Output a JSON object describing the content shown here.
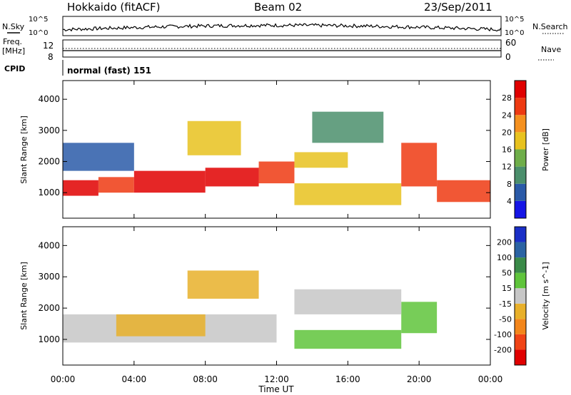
{
  "header": {
    "station": "Hokkaido (fitACF)",
    "beam": "Beam 02",
    "date": "23/Sep/2011"
  },
  "noise_panel": {
    "left_label": "N.Sky",
    "right_label": "N.Search",
    "axis_top": "10^5",
    "axis_bottom": "10^0"
  },
  "freq_panel": {
    "left_label_1": "Freq.",
    "left_label_2": "[MHz]",
    "left_top": "12",
    "left_bottom": "8",
    "right_label": "Nave",
    "right_top": "60",
    "right_bottom": "0"
  },
  "cpid_panel": {
    "label": "CPID",
    "text": "normal (fast) 151"
  },
  "x_axis": {
    "label": "Time UT",
    "ticks": [
      "00:00",
      "04:00",
      "08:00",
      "12:00",
      "16:00",
      "20:00",
      "00:00"
    ]
  },
  "power_panel": {
    "ylabel": "Slant Range [km]",
    "yticks": [
      "1000",
      "2000",
      "3000",
      "4000"
    ],
    "colorbar_label": "Power [dB]",
    "colorbar_ticks": [
      "4",
      "8",
      "12",
      "16",
      "20",
      "24",
      "28"
    ],
    "colorbar_colors": [
      "#1515e6",
      "#2a5aa8",
      "#4b8f6c",
      "#6fae4a",
      "#e8c21e",
      "#f5911f",
      "#ee3a12",
      "#e00000"
    ]
  },
  "velocity_panel": {
    "ylabel": "Slant Range [km]",
    "yticks": [
      "1000",
      "2000",
      "3000",
      "4000"
    ],
    "colorbar_label": "Velocity [m s^-1]",
    "colorbar_ticks": [
      "200",
      "100",
      "50",
      "15",
      "-15",
      "-50",
      "-100",
      "-200"
    ],
    "colorbar_colors": [
      "#1a2fc7",
      "#2a63a3",
      "#3a8a48",
      "#5fc43b",
      "#c7c7c7",
      "#e8b02a",
      "#f3861b",
      "#f04416",
      "#e00000"
    ]
  },
  "chart_data": {
    "type": "heatmap",
    "x_unit": "UT hour",
    "x_range": [
      0,
      24
    ],
    "y_unit": "km",
    "y_range": [
      180,
      4600
    ],
    "power_regions": [
      {
        "t": [
          0,
          2
        ],
        "r": [
          900,
          1400
        ],
        "value": 28
      },
      {
        "t": [
          2,
          4
        ],
        "r": [
          1000,
          1500
        ],
        "value": 26
      },
      {
        "t": [
          4,
          8
        ],
        "r": [
          1000,
          1700
        ],
        "value": 28
      },
      {
        "t": [
          8,
          11
        ],
        "r": [
          1200,
          1800
        ],
        "value": 28
      },
      {
        "t": [
          11,
          13
        ],
        "r": [
          1300,
          2000
        ],
        "value": 24
      },
      {
        "t": [
          13,
          16
        ],
        "r": [
          1800,
          2300
        ],
        "value": 18
      },
      {
        "t": [
          13,
          19
        ],
        "r": [
          600,
          1300
        ],
        "value": 16
      },
      {
        "t": [
          19,
          21
        ],
        "r": [
          1200,
          2600
        ],
        "value": 26
      },
      {
        "t": [
          21,
          24
        ],
        "r": [
          700,
          1400
        ],
        "value": 26
      },
      {
        "t": [
          0,
          4
        ],
        "r": [
          1700,
          2600
        ],
        "value": 6
      },
      {
        "t": [
          7,
          10
        ],
        "r": [
          2200,
          3300
        ],
        "value": 18
      },
      {
        "t": [
          14,
          18
        ],
        "r": [
          2600,
          3600
        ],
        "value": 10
      }
    ],
    "velocity_regions": [
      {
        "t": [
          0,
          12
        ],
        "r": [
          900,
          1800
        ],
        "value": 0
      },
      {
        "t": [
          3,
          8
        ],
        "r": [
          1100,
          1800
        ],
        "value": -30
      },
      {
        "t": [
          13,
          19
        ],
        "r": [
          700,
          1300
        ],
        "value": 35
      },
      {
        "t": [
          19,
          21
        ],
        "r": [
          1200,
          2200
        ],
        "value": 30
      },
      {
        "t": [
          13,
          19
        ],
        "r": [
          1800,
          2600
        ],
        "value": 0
      },
      {
        "t": [
          7,
          11
        ],
        "r": [
          2300,
          3200
        ],
        "value": -25
      }
    ]
  }
}
